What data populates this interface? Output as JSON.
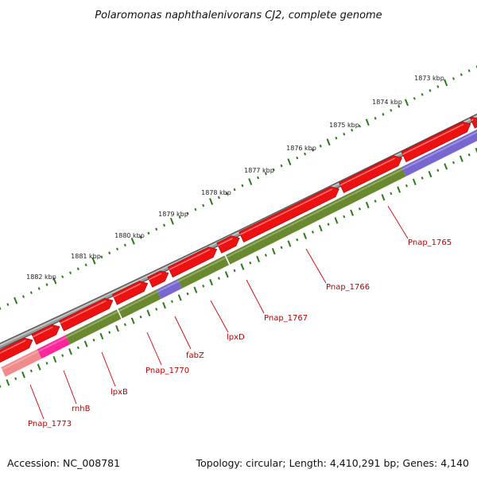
{
  "title": "Polaromonas naphthalenivorans CJ2, complete genome",
  "footer": {
    "accession": "Accession: NC_008781",
    "summary": "Topology: circular; Length: 4,410,291 bp; Genes: 4,140"
  },
  "colors": {
    "backbone": "#8a8a8a",
    "forward_gene": "#ee1111",
    "cds_green": "#5d7e1c",
    "cds_purple": "#6a5acd",
    "cds_magenta": "#ff1493",
    "cds_pink": "#f08080",
    "ticks": "#2a7a18",
    "label": "#cc0000"
  },
  "kbp_labels": [
    "1873 kbp",
    "1874 kbp",
    "1875 kbp",
    "1876 kbp",
    "1877 kbp",
    "1878 kbp",
    "1879 kbp",
    "1880 kbp",
    "1881 kbp",
    "1882 kbp"
  ],
  "gene_labels": [
    "Pnap_1765",
    "Pnap_1766",
    "Pnap_1767",
    "lpxD",
    "fabZ",
    "Pnap_1770",
    "lpxB",
    "rnhB",
    "Pnap_1773"
  ]
}
